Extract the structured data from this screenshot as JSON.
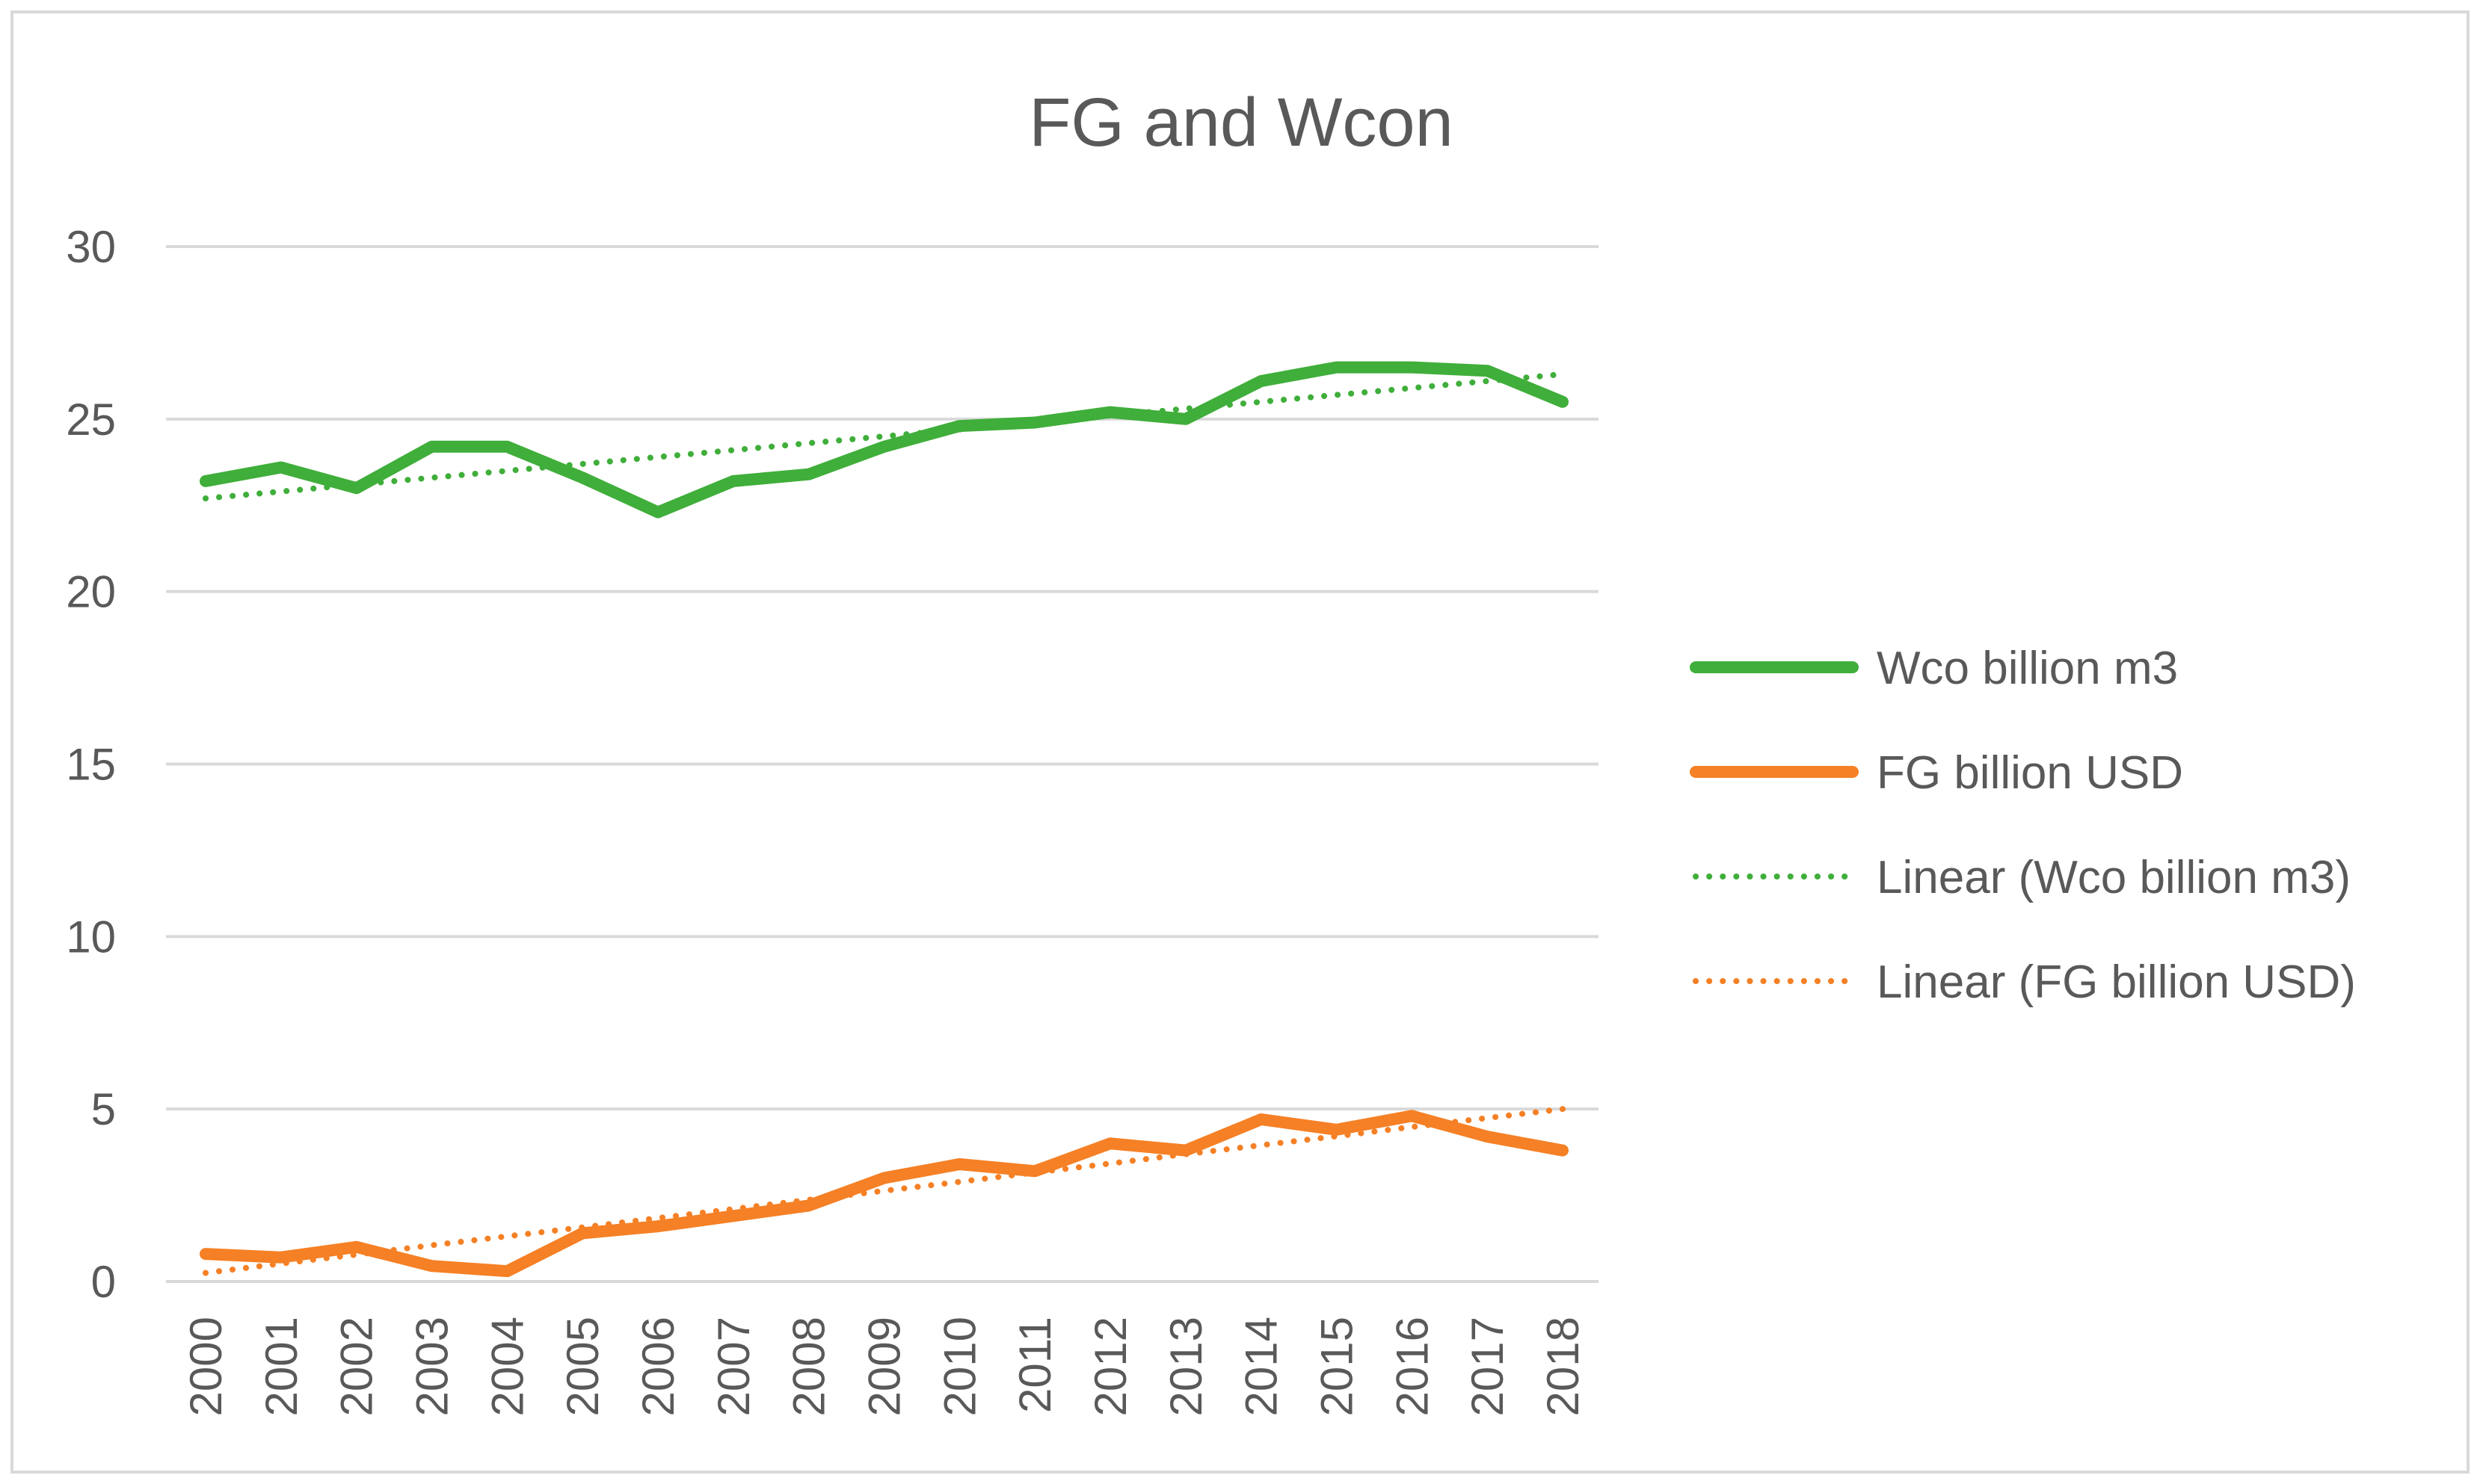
{
  "chart_data": {
    "type": "line",
    "title": "FG and Wcon",
    "xlabel": "",
    "ylabel": "",
    "ylim": [
      0,
      30
    ],
    "yticks": [
      0,
      5,
      10,
      15,
      20,
      25,
      30
    ],
    "grid": true,
    "legend_position": "right",
    "categories": [
      "2000",
      "2001",
      "2002",
      "2003",
      "2004",
      "2005",
      "2006",
      "2007",
      "2008",
      "2009",
      "2010",
      "2011",
      "2012",
      "2013",
      "2014",
      "2015",
      "2016",
      "2017",
      "2018"
    ],
    "series": [
      {
        "name": "Wco billion m3",
        "color": "#3fae3a",
        "style": "solid",
        "values": [
          23.2,
          23.6,
          23.0,
          24.2,
          24.2,
          23.3,
          22.3,
          23.2,
          23.4,
          24.2,
          24.8,
          24.9,
          25.2,
          25.0,
          26.1,
          26.5,
          26.5,
          26.4,
          25.5
        ]
      },
      {
        "name": "FG billion USD",
        "color": "#f58025",
        "style": "solid",
        "values": [
          0.8,
          0.7,
          1.0,
          0.45,
          0.3,
          1.4,
          1.6,
          1.9,
          2.2,
          3.0,
          3.4,
          3.2,
          4.0,
          3.8,
          4.7,
          4.4,
          4.8,
          4.2,
          3.8
        ]
      },
      {
        "name": "Linear (Wco billion m3)",
        "color": "#3fae3a",
        "style": "dotted",
        "trend_of": "Wco billion m3",
        "values": [
          22.7,
          22.9,
          23.1,
          23.3,
          23.5,
          23.7,
          23.9,
          24.1,
          24.3,
          24.5,
          24.7,
          24.9,
          25.1,
          25.3,
          25.5,
          25.7,
          25.9,
          26.1,
          26.3
        ]
      },
      {
        "name": "Linear (FG billion USD)",
        "color": "#f58025",
        "style": "dotted",
        "trend_of": "FG billion USD",
        "values": [
          0.25,
          0.52,
          0.78,
          1.05,
          1.31,
          1.57,
          1.84,
          2.1,
          2.37,
          2.63,
          2.89,
          3.16,
          3.42,
          3.69,
          3.95,
          4.21,
          4.48,
          4.74,
          5.0
        ]
      }
    ]
  }
}
